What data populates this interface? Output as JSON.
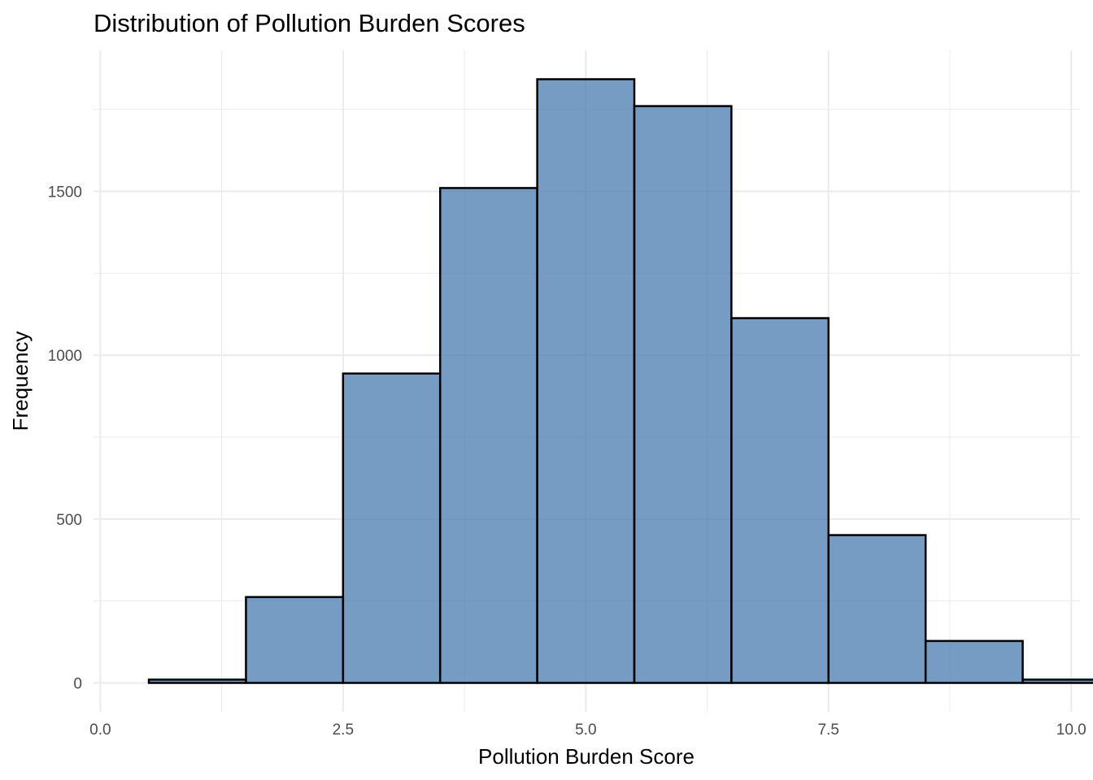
{
  "chart_data": {
    "type": "bar",
    "title": "Distribution of Pollution Burden Scores",
    "xlabel": "Pollution Burden Score",
    "ylabel": "Frequency",
    "bin_width": 1,
    "bins": [
      {
        "x0": 0.5,
        "x1": 1.5,
        "count": 10
      },
      {
        "x0": 1.5,
        "x1": 2.5,
        "count": 262
      },
      {
        "x0": 2.5,
        "x1": 3.5,
        "count": 944
      },
      {
        "x0": 3.5,
        "x1": 4.5,
        "count": 1510
      },
      {
        "x0": 4.5,
        "x1": 5.5,
        "count": 1842
      },
      {
        "x0": 5.5,
        "x1": 6.5,
        "count": 1760
      },
      {
        "x0": 6.5,
        "x1": 7.5,
        "count": 1113
      },
      {
        "x0": 7.5,
        "x1": 8.5,
        "count": 451
      },
      {
        "x0": 8.5,
        "x1": 9.5,
        "count": 128
      },
      {
        "x0": 9.5,
        "x1": 10.5,
        "count": 10
      }
    ],
    "xlim": [
      -0.07,
      10.09
    ],
    "ylim": [
      -88,
      1930
    ],
    "x_ticks": [
      {
        "value": 0,
        "label": "0.0"
      },
      {
        "value": 2.5,
        "label": "2.5"
      },
      {
        "value": 5,
        "label": "5.0"
      },
      {
        "value": 7.5,
        "label": "7.5"
      },
      {
        "value": 10,
        "label": "10.0"
      }
    ],
    "y_ticks": [
      {
        "value": 0,
        "label": "0"
      },
      {
        "value": 500,
        "label": "500"
      },
      {
        "value": 1000,
        "label": "1000"
      },
      {
        "value": 1500,
        "label": "1500"
      }
    ],
    "x_minor": [
      1.25,
      3.75,
      6.25,
      8.75
    ],
    "y_minor": [
      250,
      750,
      1250,
      1750
    ],
    "grid": true,
    "legend": "none",
    "colors": {
      "bar_fill": "#4a7bb0",
      "bar_fill_opacity": 0.75,
      "bar_stroke": "#000000",
      "grid": "#ebebeb",
      "tick_text": "#4d4d4d"
    }
  }
}
